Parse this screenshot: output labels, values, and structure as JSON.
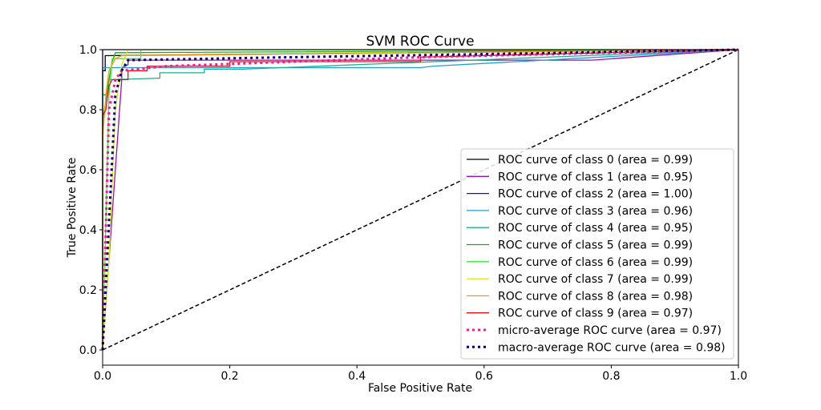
{
  "chart_data": {
    "type": "line",
    "title": "SVM ROC Curve",
    "xlabel": "False Positive Rate",
    "ylabel": "True Positive Rate",
    "xlim": [
      0.0,
      1.0
    ],
    "ylim": [
      0.0,
      1.05
    ],
    "xticks": [
      "0.0",
      "0.2",
      "0.4",
      "0.6",
      "0.8",
      "1.0"
    ],
    "yticks": [
      "0.0",
      "0.2",
      "0.4",
      "0.6",
      "0.8",
      "1.0"
    ],
    "grid": false,
    "legend_position": "lower-right",
    "series": [
      {
        "name": "ROC curve of class 0 (area = 0.99)",
        "color": "#000000",
        "style": "solid",
        "points": [
          [
            0,
            0
          ],
          [
            0,
            0.93
          ],
          [
            0.004,
            0.93
          ],
          [
            0.004,
            0.98
          ],
          [
            1,
            1
          ]
        ]
      },
      {
        "name": "ROC curve of class 1 (area = 0.95)",
        "color": "#9a0fb8",
        "style": "solid",
        "points": [
          [
            0,
            0
          ],
          [
            0.03,
            0.9
          ],
          [
            0.03,
            0.94
          ],
          [
            0.04,
            0.95
          ],
          [
            0.04,
            0.965
          ],
          [
            0.77,
            0.965
          ],
          [
            1,
            1
          ]
        ]
      },
      {
        "name": "ROC curve of class 2 (area = 1.00)",
        "color": "#1010dd",
        "style": "solid",
        "points": [
          [
            0,
            0
          ],
          [
            0,
            1
          ],
          [
            0.045,
            1
          ],
          [
            1,
            1
          ]
        ]
      },
      {
        "name": "ROC curve of class 3 (area = 0.96)",
        "color": "#1e9fd4",
        "style": "solid",
        "points": [
          [
            0,
            0
          ],
          [
            0,
            0.94
          ],
          [
            0.5,
            0.94
          ],
          [
            0.52,
            0.945
          ],
          [
            1,
            1
          ]
        ]
      },
      {
        "name": "ROC curve of class 4 (area = 0.95)",
        "color": "#1fae8c",
        "style": "solid",
        "points": [
          [
            0,
            0
          ],
          [
            0,
            0.76
          ],
          [
            0.01,
            0.9
          ],
          [
            0.09,
            0.905
          ],
          [
            0.09,
            0.923
          ],
          [
            0.16,
            0.923
          ],
          [
            0.16,
            0.935
          ],
          [
            0.22,
            0.935
          ],
          [
            1,
            1
          ]
        ]
      },
      {
        "name": "ROC curve of class 5 (area = 0.99)",
        "color": "#00bb00",
        "style": "solid",
        "points": [
          [
            0,
            0
          ],
          [
            0,
            0.85
          ],
          [
            0.005,
            0.85
          ],
          [
            0.01,
            0.9
          ],
          [
            0.015,
            0.96
          ],
          [
            0.02,
            0.99
          ],
          [
            1,
            1
          ]
        ]
      },
      {
        "name": "ROC curve of class 6 (area = 0.99)",
        "color": "#33ee33",
        "style": "solid",
        "points": [
          [
            0,
            0
          ],
          [
            0.01,
            0.85
          ],
          [
            0.015,
            0.97
          ],
          [
            0.06,
            0.97
          ],
          [
            0.06,
            1.0
          ],
          [
            1,
            1
          ]
        ]
      },
      {
        "name": "ROC curve of class 7 (area = 0.99)",
        "color": "#e6e600",
        "style": "solid",
        "points": [
          [
            0,
            0
          ],
          [
            0.01,
            0.3
          ],
          [
            0.02,
            0.8
          ],
          [
            0.03,
            0.95
          ],
          [
            0.04,
            1
          ],
          [
            1,
            1
          ]
        ]
      },
      {
        "name": "ROC curve of class 8 (area = 0.98)",
        "color": "#ff9900",
        "style": "solid",
        "points": [
          [
            0,
            0
          ],
          [
            0,
            0.7
          ],
          [
            0.005,
            0.85
          ],
          [
            0.01,
            0.93
          ],
          [
            0.02,
            0.97
          ],
          [
            0.03,
            0.98
          ],
          [
            1,
            1
          ]
        ]
      },
      {
        "name": "ROC curve of class 9 (area = 0.97)",
        "color": "#ee1111",
        "style": "solid",
        "points": [
          [
            0,
            0
          ],
          [
            0,
            0.78
          ],
          [
            0.005,
            0.8
          ],
          [
            0.01,
            0.88
          ],
          [
            0.015,
            0.9
          ],
          [
            0.04,
            0.9
          ],
          [
            0.04,
            0.93
          ],
          [
            0.07,
            0.93
          ],
          [
            0.07,
            0.945
          ],
          [
            0.2,
            0.945
          ],
          [
            0.2,
            0.96
          ],
          [
            0.5,
            0.96
          ],
          [
            0.5,
            0.975
          ],
          [
            1,
            1
          ]
        ]
      },
      {
        "name": "micro-average ROC curve (area = 0.97)",
        "color": "#ff1493",
        "style": "dotted",
        "points": [
          [
            0,
            0
          ],
          [
            0.01,
            0.8
          ],
          [
            0.02,
            0.9
          ],
          [
            0.03,
            0.93
          ],
          [
            0.1,
            0.945
          ],
          [
            0.3,
            0.96
          ],
          [
            0.5,
            0.975
          ],
          [
            1,
            1
          ]
        ]
      },
      {
        "name": "macro-average ROC curve (area = 0.98)",
        "color": "#000080",
        "style": "dotted",
        "points": [
          [
            0,
            0
          ],
          [
            0.02,
            0.85
          ],
          [
            0.03,
            0.93
          ],
          [
            0.04,
            0.965
          ],
          [
            0.3,
            0.975
          ],
          [
            0.6,
            0.985
          ],
          [
            1,
            1
          ]
        ]
      }
    ],
    "reference_line": {
      "color": "#000000",
      "style": "dashed",
      "points": [
        [
          0,
          0
        ],
        [
          1,
          1
        ]
      ]
    }
  }
}
